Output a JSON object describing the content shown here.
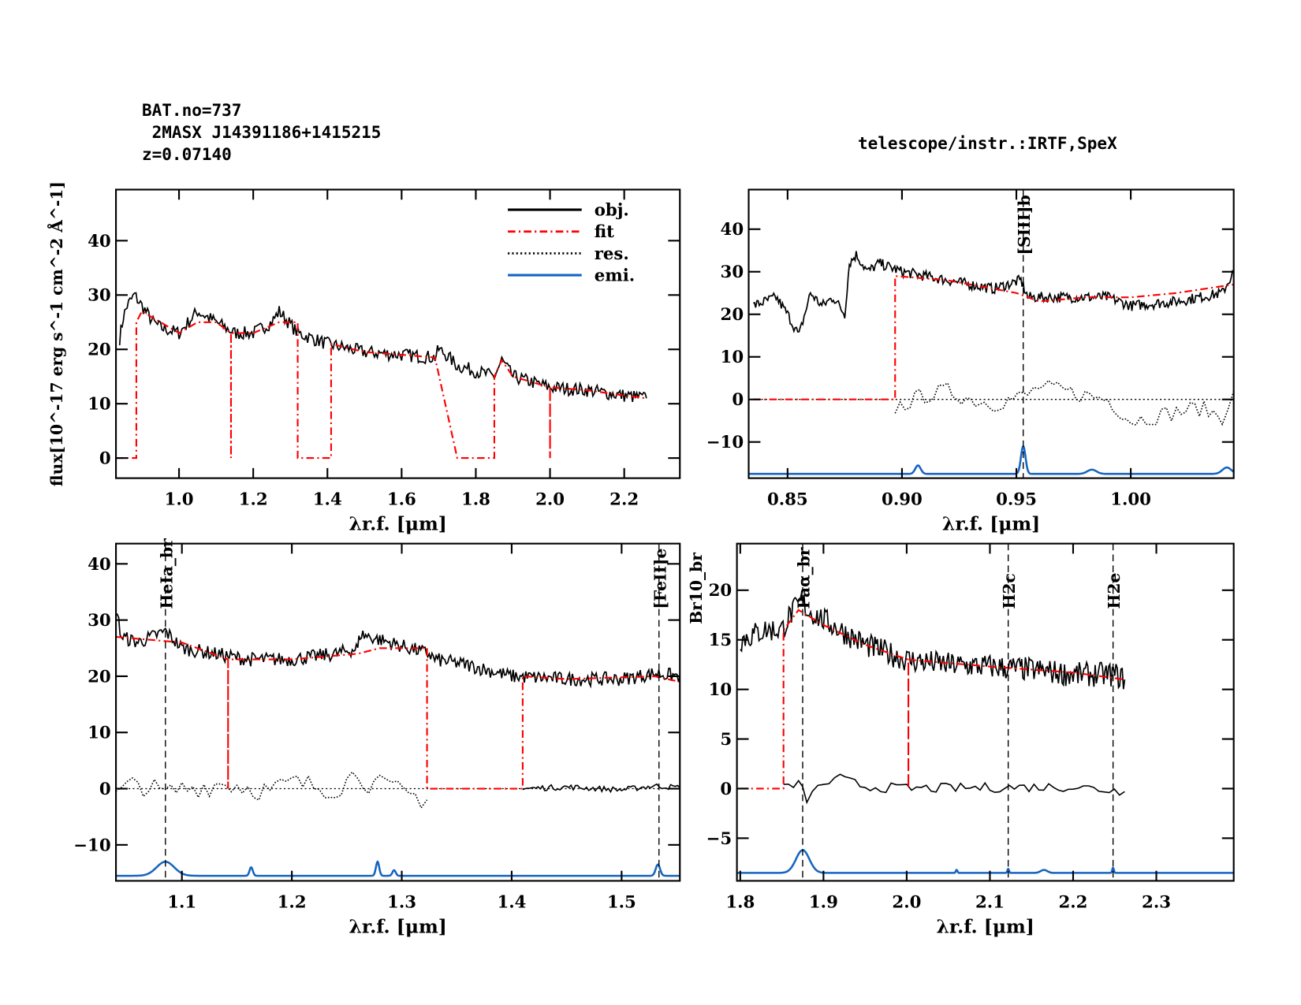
{
  "header": {
    "bat_no": "BAT.no=737",
    "object": " 2MASX J14391186+1415215",
    "redshift": "z=0.07140",
    "instrument": "telescope/instr.:IRTF,SpeX"
  },
  "legend": [
    {
      "label": "obj.",
      "color": "#000000",
      "style": "solid"
    },
    {
      "label": "fit",
      "color": "#ff0000",
      "style": "dashdot"
    },
    {
      "label": "res.",
      "color": "#000000",
      "style": "dotted"
    },
    {
      "label": "emi.",
      "color": "#1565c0",
      "style": "solid"
    }
  ],
  "colors": {
    "obj": "#000000",
    "fit": "#ff0000",
    "res": "#000000",
    "emi": "#1565c0"
  },
  "chart_data": [
    {
      "type": "line",
      "xlabel": "λr.f. [μm]",
      "ylabel": "flux[10^-17 erg s^-1 cm^-2 Å^-1]",
      "xlim": [
        0.83,
        2.35
      ],
      "ylim": [
        -3.7,
        49.4
      ],
      "xticks": [
        1.0,
        1.2,
        1.4,
        1.6,
        1.8,
        2.0,
        2.2
      ],
      "xtick_labels": [
        "1.0",
        "1.2",
        "1.4",
        "1.6",
        "1.8",
        "2.0",
        "2.2"
      ],
      "yticks": [
        0,
        10,
        20,
        30,
        40
      ],
      "ytick_labels": [
        "0",
        "10",
        "20",
        "30",
        "40"
      ],
      "legend_position": "top-right",
      "obj": [
        [
          0.84,
          22
        ],
        [
          0.85,
          26
        ],
        [
          0.86,
          28
        ],
        [
          0.88,
          30
        ],
        [
          0.9,
          28
        ],
        [
          0.93,
          25
        ],
        [
          0.95,
          24
        ],
        [
          1.0,
          23
        ],
        [
          1.05,
          27
        ],
        [
          1.1,
          25
        ],
        [
          1.15,
          23
        ],
        [
          1.2,
          23
        ],
        [
          1.25,
          25
        ],
        [
          1.27,
          27
        ],
        [
          1.32,
          23
        ],
        [
          1.4,
          21
        ],
        [
          1.5,
          19.5
        ],
        [
          1.6,
          19
        ],
        [
          1.69,
          18.5
        ],
        [
          1.7,
          20
        ],
        [
          1.72,
          19
        ],
        [
          1.75,
          17
        ],
        [
          1.8,
          16
        ],
        [
          1.85,
          15
        ],
        [
          1.87,
          18
        ],
        [
          1.9,
          15
        ],
        [
          2.0,
          13
        ],
        [
          2.1,
          12.5
        ],
        [
          2.2,
          11.5
        ],
        [
          2.26,
          11
        ]
      ],
      "fit": [
        [
          0.83,
          0
        ],
        [
          0.885,
          0
        ],
        [
          0.885,
          25
        ],
        [
          0.9,
          27
        ],
        [
          0.95,
          25
        ],
        [
          1.0,
          23
        ],
        [
          1.05,
          25
        ],
        [
          1.1,
          25
        ],
        [
          1.14,
          23
        ],
        [
          1.14,
          0
        ],
        [
          1.14,
          23
        ],
        [
          1.2,
          23
        ],
        [
          1.27,
          25
        ],
        [
          1.32,
          25
        ],
        [
          1.32,
          0
        ],
        [
          1.41,
          0
        ],
        [
          1.41,
          21
        ],
        [
          1.5,
          19.5
        ],
        [
          1.6,
          19
        ],
        [
          1.69,
          18.5
        ],
        [
          1.75,
          0
        ],
        [
          1.85,
          0
        ],
        [
          1.85,
          15
        ],
        [
          1.87,
          18
        ],
        [
          1.9,
          15
        ],
        [
          2.0,
          13
        ],
        [
          2.0,
          0
        ],
        [
          2.0,
          13
        ],
        [
          2.1,
          12.5
        ],
        [
          2.2,
          11.5
        ],
        [
          2.26,
          11
        ]
      ],
      "residual": [],
      "emission": null,
      "markers": []
    },
    {
      "type": "line",
      "xlabel": "λr.f. [μm]",
      "xlim": [
        0.833,
        1.045
      ],
      "ylim": [
        -18.5,
        49.3
      ],
      "xticks": [
        0.85,
        0.9,
        0.95,
        1.0
      ],
      "xtick_labels": [
        "0.85",
        "0.90",
        "0.95",
        "1.00"
      ],
      "yticks": [
        -10,
        0,
        10,
        20,
        30,
        40
      ],
      "ytick_labels": [
        "−10",
        "0",
        "10",
        "20",
        "30",
        "40"
      ],
      "obj": [
        [
          0.835,
          22
        ],
        [
          0.845,
          24
        ],
        [
          0.85,
          20
        ],
        [
          0.855,
          15
        ],
        [
          0.86,
          25
        ],
        [
          0.865,
          22
        ],
        [
          0.87,
          24
        ],
        [
          0.875,
          20
        ],
        [
          0.877,
          32
        ],
        [
          0.88,
          34
        ],
        [
          0.885,
          30
        ],
        [
          0.89,
          32
        ],
        [
          0.9,
          30
        ],
        [
          0.92,
          28
        ],
        [
          0.94,
          26
        ],
        [
          0.952,
          28
        ],
        [
          0.955,
          24
        ],
        [
          0.97,
          24
        ],
        [
          0.99,
          24
        ],
        [
          1.0,
          22
        ],
        [
          1.02,
          23
        ],
        [
          1.04,
          25
        ],
        [
          1.045,
          30
        ]
      ],
      "fit": [
        [
          0.835,
          0
        ],
        [
          0.897,
          0
        ],
        [
          0.897,
          29
        ],
        [
          0.92,
          28
        ],
        [
          0.95,
          25
        ],
        [
          0.96,
          23
        ],
        [
          0.98,
          24
        ],
        [
          1.0,
          24
        ],
        [
          1.02,
          25
        ],
        [
          1.045,
          27
        ]
      ],
      "residual": [
        [
          0.897,
          -2
        ],
        [
          0.91,
          1
        ],
        [
          0.92,
          2
        ],
        [
          0.93,
          0
        ],
        [
          0.94,
          -1
        ],
        [
          0.955,
          1
        ],
        [
          0.96,
          3
        ],
        [
          0.97,
          2
        ],
        [
          0.98,
          1
        ],
        [
          0.99,
          0
        ],
        [
          1.0,
          -5
        ],
        [
          1.02,
          -3
        ],
        [
          1.03,
          -2
        ],
        [
          1.04,
          -4
        ],
        [
          1.045,
          2
        ]
      ],
      "residual_style": "dotted",
      "zero_line": true,
      "emission": {
        "baseline": -17.5,
        "lines": [
          {
            "center": 0.907,
            "amp": 2,
            "sigma": 0.0012
          },
          {
            "center": 0.953,
            "amp": 6.5,
            "sigma": 0.001
          },
          {
            "center": 0.983,
            "amp": 1,
            "sigma": 0.002
          },
          {
            "center": 1.042,
            "amp": 1.5,
            "sigma": 0.002
          }
        ]
      },
      "markers": [
        {
          "x": 0.953,
          "label": "[SIII]b"
        }
      ]
    },
    {
      "type": "line",
      "xlabel": "λr.f. [μm]",
      "xlim": [
        1.04,
        1.553
      ],
      "ylim": [
        -16.4,
        43.6
      ],
      "xticks": [
        1.1,
        1.2,
        1.3,
        1.4,
        1.5
      ],
      "xtick_labels": [
        "1.1",
        "1.2",
        "1.3",
        "1.4",
        "1.5"
      ],
      "yticks": [
        -10,
        0,
        10,
        20,
        30,
        40
      ],
      "ytick_labels": [
        "−10",
        "0",
        "10",
        "20",
        "30",
        "40"
      ],
      "obj": [
        [
          1.04,
          32
        ],
        [
          1.045,
          27
        ],
        [
          1.06,
          26
        ],
        [
          1.085,
          28
        ],
        [
          1.1,
          25
        ],
        [
          1.13,
          24
        ],
        [
          1.16,
          23
        ],
        [
          1.2,
          23
        ],
        [
          1.24,
          24
        ],
        [
          1.26,
          25
        ],
        [
          1.262,
          27.5
        ],
        [
          1.325,
          24
        ],
        [
          1.33,
          23
        ],
        [
          1.36,
          22
        ],
        [
          1.4,
          20
        ],
        [
          1.45,
          19.5
        ],
        [
          1.5,
          19.5
        ],
        [
          1.53,
          20.5
        ],
        [
          1.553,
          20
        ]
      ],
      "fit": [
        [
          1.04,
          27
        ],
        [
          1.1,
          26
        ],
        [
          1.142,
          23
        ],
        [
          1.142,
          0
        ],
        [
          1.142,
          23
        ],
        [
          1.2,
          23
        ],
        [
          1.26,
          24
        ],
        [
          1.28,
          25
        ],
        [
          1.323,
          25
        ],
        [
          1.323,
          0
        ],
        [
          1.41,
          0
        ],
        [
          1.41,
          20
        ],
        [
          1.45,
          19.5
        ],
        [
          1.53,
          20
        ],
        [
          1.553,
          19
        ]
      ],
      "residual": [
        [
          1.04,
          -1
        ],
        [
          1.06,
          1
        ],
        [
          1.085,
          -1
        ],
        [
          1.1,
          0
        ],
        [
          1.14,
          1
        ],
        [
          1.18,
          -0.5
        ],
        [
          1.2,
          1
        ],
        [
          1.24,
          0
        ],
        [
          1.26,
          3
        ],
        [
          1.27,
          1
        ],
        [
          1.28,
          0.5
        ],
        [
          1.323,
          -2
        ]
      ],
      "residual2": [
        [
          1.41,
          0
        ],
        [
          1.45,
          0.3
        ],
        [
          1.5,
          -0.2
        ],
        [
          1.53,
          0.5
        ],
        [
          1.553,
          0.2
        ]
      ],
      "residual_style": "dotted",
      "zero_line": true,
      "emission": {
        "baseline": -15.5,
        "lines": [
          {
            "center": 1.085,
            "amp": 2.5,
            "sigma": 0.008
          },
          {
            "center": 1.163,
            "amp": 1.5,
            "sigma": 0.0015
          },
          {
            "center": 1.278,
            "amp": 2.5,
            "sigma": 0.0015
          },
          {
            "center": 1.293,
            "amp": 1,
            "sigma": 0.0015
          },
          {
            "center": 1.533,
            "amp": 2,
            "sigma": 0.002
          }
        ]
      },
      "markers": [
        {
          "x": 1.085,
          "label": "HeIa_br"
        },
        {
          "x": 1.534,
          "label": "[FeII]e"
        }
      ]
    },
    {
      "type": "line",
      "xlabel": "λr.f. [μm]",
      "xlim": [
        1.796,
        2.393
      ],
      "ylim": [
        -9.3,
        24.7
      ],
      "xticks": [
        1.8,
        1.9,
        2.0,
        2.1,
        2.2,
        2.3
      ],
      "xtick_labels": [
        "1.8",
        "1.9",
        "2.0",
        "2.1",
        "2.2",
        "2.3"
      ],
      "yticks": [
        -5,
        0,
        5,
        10,
        15,
        20
      ],
      "ytick_labels": [
        "−5",
        "0",
        "5",
        "10",
        "15",
        "20"
      ],
      "obj": [
        [
          1.8,
          15
        ],
        [
          1.83,
          16
        ],
        [
          1.85,
          16
        ],
        [
          1.86,
          17.5
        ],
        [
          1.875,
          19
        ],
        [
          1.88,
          18
        ],
        [
          1.9,
          17
        ],
        [
          1.95,
          14.5
        ],
        [
          2.0,
          13
        ],
        [
          2.05,
          12.5
        ],
        [
          2.1,
          12.3
        ],
        [
          2.15,
          12
        ],
        [
          2.2,
          11.5
        ],
        [
          2.25,
          11.5
        ],
        [
          2.262,
          11
        ]
      ],
      "fit": [
        [
          1.8,
          0
        ],
        [
          1.852,
          0
        ],
        [
          1.852,
          16
        ],
        [
          1.87,
          18
        ],
        [
          1.9,
          16.5
        ],
        [
          1.95,
          14.5
        ],
        [
          2.002,
          13
        ],
        [
          2.002,
          0
        ],
        [
          2.002,
          13
        ],
        [
          2.1,
          12.3
        ],
        [
          2.2,
          11.7
        ],
        [
          2.262,
          11
        ]
      ],
      "residual": [
        [
          1.852,
          0
        ],
        [
          1.87,
          0.5
        ],
        [
          1.88,
          -1
        ],
        [
          1.9,
          0.5
        ],
        [
          1.92,
          1
        ],
        [
          1.95,
          0.2
        ],
        [
          2.0,
          0
        ],
        [
          2.1,
          0.1
        ],
        [
          2.2,
          0.2
        ],
        [
          2.262,
          -0.3
        ]
      ],
      "residual_style": "solid",
      "zero_line": false,
      "emission": {
        "baseline": -8.5,
        "lines": [
          {
            "center": 1.875,
            "amp": 2.3,
            "sigma": 0.008
          },
          {
            "center": 2.06,
            "amp": 0.3,
            "sigma": 0.001
          },
          {
            "center": 2.122,
            "amp": 0.4,
            "sigma": 0.001
          },
          {
            "center": 2.165,
            "amp": 0.3,
            "sigma": 0.004
          },
          {
            "center": 2.248,
            "amp": 0.5,
            "sigma": 0.001
          }
        ]
      },
      "markers": [
        {
          "x": 1.875,
          "label": "Paα_br"
        },
        {
          "x": 2.122,
          "label": "H2c"
        },
        {
          "x": 2.248,
          "label": "H2e"
        }
      ],
      "extra_label": "Br10_br"
    }
  ]
}
